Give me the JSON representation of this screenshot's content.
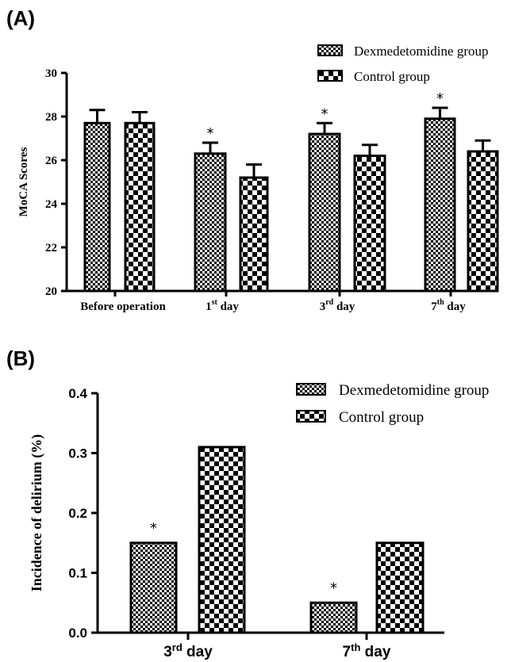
{
  "chart_data": [
    {
      "panel": "(A)",
      "type": "bar",
      "ylabel": "MoCA Scores",
      "ylim": [
        20,
        30
      ],
      "yticks": [
        20,
        22,
        24,
        26,
        28,
        30
      ],
      "categories": [
        {
          "main": "Before operation",
          "sup": "",
          "tail": ""
        },
        {
          "main": "1",
          "sup": "st",
          "tail": " day"
        },
        {
          "main": "3",
          "sup": "rd",
          "tail": " day"
        },
        {
          "main": "7",
          "sup": "th",
          "tail": " day"
        }
      ],
      "series": [
        {
          "name": "Dexmedetomidine group",
          "pattern": "small-checker",
          "values": [
            27.7,
            26.3,
            27.2,
            27.9
          ],
          "errors": [
            0.6,
            0.5,
            0.5,
            0.5
          ]
        },
        {
          "name": "Control group",
          "pattern": "large-checker",
          "values": [
            27.7,
            25.2,
            26.2,
            26.4
          ],
          "errors": [
            0.5,
            0.6,
            0.5,
            0.5
          ]
        }
      ],
      "annotations": [
        {
          "series": 0,
          "category": 1,
          "text": "*"
        },
        {
          "series": 0,
          "category": 2,
          "text": "*"
        },
        {
          "series": 0,
          "category": 3,
          "text": "*"
        }
      ],
      "legend_position": "top-right",
      "grid": false
    },
    {
      "panel": "(B)",
      "type": "bar",
      "ylabel": "Incidence of delirium (%)",
      "ylim": [
        0,
        0.4
      ],
      "yticks": [
        "0.0",
        "0.1",
        "0.2",
        "0.3",
        "0.4"
      ],
      "categories": [
        {
          "main": "3",
          "sup": "rd",
          "tail": " day"
        },
        {
          "main": "7",
          "sup": "th",
          "tail": " day"
        }
      ],
      "series": [
        {
          "name": "Dexmedetomidine group",
          "pattern": "small-checker",
          "values": [
            0.15,
            0.05
          ]
        },
        {
          "name": "Control group",
          "pattern": "large-checker",
          "values": [
            0.31,
            0.15
          ]
        }
      ],
      "annotations": [
        {
          "series": 0,
          "category": 0,
          "text": "*"
        },
        {
          "series": 0,
          "category": 1,
          "text": "*"
        }
      ],
      "legend_position": "top-right",
      "grid": false
    }
  ]
}
